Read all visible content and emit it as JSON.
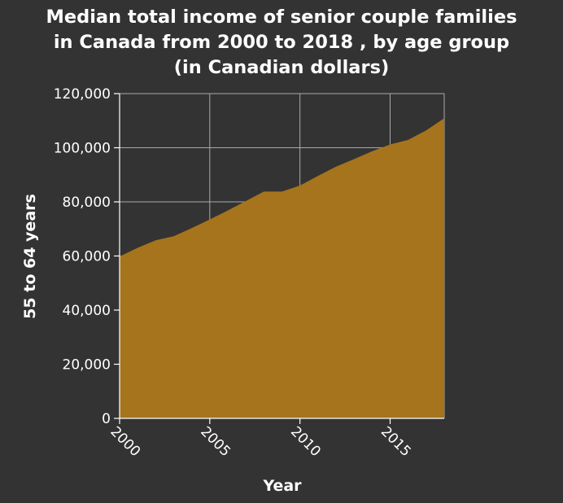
{
  "chart_data": {
    "type": "area",
    "title_lines": [
      "Median total income of senior couple families",
      "in Canada from 2000 to 2018 , by age group",
      "(in Canadian dollars)"
    ],
    "xlabel": "Year",
    "ylabel": "55 to 64 years",
    "xlim": [
      2000,
      2018
    ],
    "ylim": [
      0,
      120000
    ],
    "x_ticks": [
      2000,
      2005,
      2010,
      2015
    ],
    "x_tick_labels": [
      "2000",
      "2005",
      "2010",
      "2015"
    ],
    "y_ticks": [
      0,
      20000,
      40000,
      60000,
      80000,
      100000,
      120000
    ],
    "y_tick_labels": [
      "0",
      "20,000",
      "40,000",
      "60,000",
      "80,000",
      "100,000",
      "120,000"
    ],
    "grid": true,
    "x": [
      2000,
      2001,
      2002,
      2003,
      2004,
      2005,
      2006,
      2007,
      2008,
      2009,
      2010,
      2011,
      2012,
      2013,
      2014,
      2015,
      2016,
      2017,
      2018
    ],
    "values": [
      59800,
      63000,
      65800,
      67300,
      70300,
      73500,
      76800,
      80300,
      83800,
      83800,
      86000,
      89600,
      93000,
      95800,
      98700,
      101200,
      102900,
      106400,
      110900
    ],
    "fill_color": "#a6741c",
    "background_color": "#333333",
    "grid_color": "#aaaaaa"
  }
}
